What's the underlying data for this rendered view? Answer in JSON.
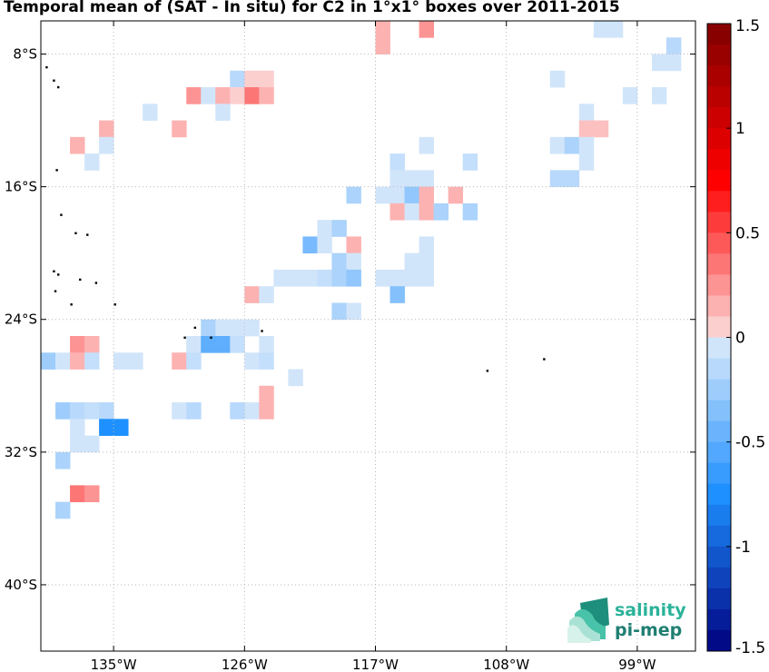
{
  "title": "Temporal mean of (SAT - In situ) for C2 in 1°x1° boxes over 2011-2015",
  "map": {
    "lon_range": [
      -140,
      -95
    ],
    "lat_range": [
      -44,
      -6
    ],
    "lon_ticks": [
      {
        "value": -135,
        "label": "135°W"
      },
      {
        "value": -126,
        "label": "126°W"
      },
      {
        "value": -117,
        "label": "117°W"
      },
      {
        "value": -108,
        "label": "108°W"
      },
      {
        "value": -99,
        "label": "99°W"
      }
    ],
    "lat_ticks": [
      {
        "value": -8,
        "label": "8°S"
      },
      {
        "value": -16,
        "label": "16°S"
      },
      {
        "value": -24,
        "label": "24°S"
      },
      {
        "value": -32,
        "label": "32°S"
      },
      {
        "value": -40,
        "label": "40°S"
      }
    ],
    "grid": true
  },
  "colorbar": {
    "range": [
      -1.5,
      1.5
    ],
    "levels": 30,
    "ticks": [
      {
        "value": 1.5,
        "label": "1.5"
      },
      {
        "value": 1,
        "label": "1"
      },
      {
        "value": 0.5,
        "label": "0.5"
      },
      {
        "value": 0,
        "label": "0"
      },
      {
        "value": -0.5,
        "label": "-0.5"
      },
      {
        "value": -1,
        "label": "-1"
      },
      {
        "value": -1.5,
        "label": "-1.5"
      }
    ]
  },
  "logo": {
    "line1": "salinity",
    "line2": "pi-mep"
  },
  "chart_data": {
    "type": "heatmap",
    "title": "Temporal mean of (SAT - In situ) for C2 in 1°x1° boxes over 2011-2015",
    "xlabel": "",
    "ylabel": "",
    "cell_size_deg": 1,
    "cells": [
      {
        "lon": -116.5,
        "lat": -6.5,
        "v": 0.15
      },
      {
        "lon": -113.5,
        "lat": -6.5,
        "v": 0.25
      },
      {
        "lon": -116.5,
        "lat": -7.5,
        "v": 0.15
      },
      {
        "lon": -101.5,
        "lat": -6.5,
        "v": -0.05
      },
      {
        "lon": -100.5,
        "lat": -6.5,
        "v": -0.05
      },
      {
        "lon": -96.5,
        "lat": -7.5,
        "v": -0.15
      },
      {
        "lon": -97.5,
        "lat": -8.5,
        "v": -0.05
      },
      {
        "lon": -96.5,
        "lat": -8.5,
        "v": -0.05
      },
      {
        "lon": -104.5,
        "lat": -9.5,
        "v": -0.05
      },
      {
        "lon": -126.5,
        "lat": -9.5,
        "v": -0.15
      },
      {
        "lon": -125.5,
        "lat": -9.5,
        "v": 0.05
      },
      {
        "lon": -124.5,
        "lat": -9.5,
        "v": 0.05
      },
      {
        "lon": -129.5,
        "lat": -10.5,
        "v": 0.25
      },
      {
        "lon": -128.5,
        "lat": -10.5,
        "v": -0.05
      },
      {
        "lon": -127.5,
        "lat": -10.5,
        "v": 0.15
      },
      {
        "lon": -126.5,
        "lat": -10.5,
        "v": 0.05
      },
      {
        "lon": -125.5,
        "lat": -10.5,
        "v": 0.35
      },
      {
        "lon": -124.5,
        "lat": -10.5,
        "v": 0.15
      },
      {
        "lon": -99.5,
        "lat": -10.5,
        "v": -0.05
      },
      {
        "lon": -97.5,
        "lat": -10.5,
        "v": -0.05
      },
      {
        "lon": -132.5,
        "lat": -11.5,
        "v": -0.05
      },
      {
        "lon": -127.5,
        "lat": -11.5,
        "v": -0.05
      },
      {
        "lon": -102.5,
        "lat": -11.5,
        "v": -0.05
      },
      {
        "lon": -135.5,
        "lat": -12.5,
        "v": 0.15
      },
      {
        "lon": -130.5,
        "lat": -12.5,
        "v": 0.15
      },
      {
        "lon": -102.5,
        "lat": -12.5,
        "v": 0.1
      },
      {
        "lon": -101.5,
        "lat": -12.5,
        "v": 0.1
      },
      {
        "lon": -135.5,
        "lat": -13.5,
        "v": -0.05
      },
      {
        "lon": -137.5,
        "lat": -13.5,
        "v": 0.15
      },
      {
        "lon": -113.5,
        "lat": -13.5,
        "v": -0.05
      },
      {
        "lon": -104.5,
        "lat": -13.5,
        "v": -0.05
      },
      {
        "lon": -103.5,
        "lat": -13.5,
        "v": -0.2
      },
      {
        "lon": -102.5,
        "lat": -13.5,
        "v": -0.05
      },
      {
        "lon": -136.5,
        "lat": -14.5,
        "v": -0.05
      },
      {
        "lon": -115.5,
        "lat": -14.5,
        "v": -0.1
      },
      {
        "lon": -110.5,
        "lat": -14.5,
        "v": -0.1
      },
      {
        "lon": -102.5,
        "lat": -14.5,
        "v": -0.05
      },
      {
        "lon": -115.5,
        "lat": -15.5,
        "v": -0.05
      },
      {
        "lon": -114.5,
        "lat": -15.5,
        "v": -0.05
      },
      {
        "lon": -113.5,
        "lat": -15.5,
        "v": -0.05
      },
      {
        "lon": -104.5,
        "lat": -15.5,
        "v": -0.15
      },
      {
        "lon": -103.5,
        "lat": -15.5,
        "v": -0.15
      },
      {
        "lon": -118.5,
        "lat": -16.5,
        "v": -0.2
      },
      {
        "lon": -116.5,
        "lat": -16.5,
        "v": -0.05
      },
      {
        "lon": -115.5,
        "lat": -16.5,
        "v": -0.05
      },
      {
        "lon": -114.5,
        "lat": -16.5,
        "v": -0.3
      },
      {
        "lon": -113.5,
        "lat": -16.5,
        "v": 0.15
      },
      {
        "lon": -111.5,
        "lat": -16.5,
        "v": 0.15
      },
      {
        "lon": -115.5,
        "lat": -17.5,
        "v": 0.15
      },
      {
        "lon": -114.5,
        "lat": -17.5,
        "v": -0.05
      },
      {
        "lon": -113.5,
        "lat": -17.5,
        "v": 0.15
      },
      {
        "lon": -112.5,
        "lat": -17.5,
        "v": -0.2
      },
      {
        "lon": -110.5,
        "lat": -17.5,
        "v": -0.2
      },
      {
        "lon": -120.5,
        "lat": -18.5,
        "v": -0.05
      },
      {
        "lon": -119.5,
        "lat": -18.5,
        "v": -0.2
      },
      {
        "lon": -121.5,
        "lat": -19.5,
        "v": -0.4
      },
      {
        "lon": -120.5,
        "lat": -19.5,
        "v": -0.05
      },
      {
        "lon": -118.5,
        "lat": -19.5,
        "v": 0.15
      },
      {
        "lon": -113.5,
        "lat": -19.5,
        "v": -0.05
      },
      {
        "lon": -119.5,
        "lat": -20.5,
        "v": -0.2
      },
      {
        "lon": -118.5,
        "lat": -20.5,
        "v": -0.05
      },
      {
        "lon": -114.5,
        "lat": -20.5,
        "v": -0.05
      },
      {
        "lon": -113.5,
        "lat": -20.5,
        "v": -0.05
      },
      {
        "lon": -123.5,
        "lat": -21.5,
        "v": -0.05
      },
      {
        "lon": -122.5,
        "lat": -21.5,
        "v": -0.05
      },
      {
        "lon": -121.5,
        "lat": -21.5,
        "v": -0.05
      },
      {
        "lon": -120.5,
        "lat": -21.5,
        "v": -0.1
      },
      {
        "lon": -119.5,
        "lat": -21.5,
        "v": -0.2
      },
      {
        "lon": -118.5,
        "lat": -21.5,
        "v": -0.3
      },
      {
        "lon": -116.5,
        "lat": -21.5,
        "v": -0.05
      },
      {
        "lon": -115.5,
        "lat": -21.5,
        "v": -0.05
      },
      {
        "lon": -114.5,
        "lat": -21.5,
        "v": -0.05
      },
      {
        "lon": -113.5,
        "lat": -21.5,
        "v": -0.05
      },
      {
        "lon": -125.5,
        "lat": -22.5,
        "v": 0.15
      },
      {
        "lon": -124.5,
        "lat": -22.5,
        "v": -0.05
      },
      {
        "lon": -115.5,
        "lat": -22.5,
        "v": -0.35
      },
      {
        "lon": -119.5,
        "lat": -23.5,
        "v": -0.2
      },
      {
        "lon": -118.5,
        "lat": -23.5,
        "v": -0.05
      },
      {
        "lon": -128.5,
        "lat": -24.5,
        "v": -0.2
      },
      {
        "lon": -127.5,
        "lat": -24.5,
        "v": -0.05
      },
      {
        "lon": -126.5,
        "lat": -24.5,
        "v": -0.05
      },
      {
        "lon": -125.5,
        "lat": -24.5,
        "v": -0.05
      },
      {
        "lon": -129.5,
        "lat": -25.5,
        "v": -0.05
      },
      {
        "lon": -128.5,
        "lat": -25.5,
        "v": -0.5
      },
      {
        "lon": -127.5,
        "lat": -25.5,
        "v": -0.5
      },
      {
        "lon": -126.5,
        "lat": -25.5,
        "v": -0.1
      },
      {
        "lon": -137.5,
        "lat": -25.5,
        "v": 0.25
      },
      {
        "lon": -136.5,
        "lat": -25.5,
        "v": 0.15
      },
      {
        "lon": -124.5,
        "lat": -25.5,
        "v": -0.05
      },
      {
        "lon": -139.5,
        "lat": -26.5,
        "v": -0.25
      },
      {
        "lon": -138.5,
        "lat": -26.5,
        "v": -0.05
      },
      {
        "lon": -137.5,
        "lat": -26.5,
        "v": 0.15
      },
      {
        "lon": -136.5,
        "lat": -26.5,
        "v": -0.1
      },
      {
        "lon": -134.5,
        "lat": -26.5,
        "v": -0.05
      },
      {
        "lon": -133.5,
        "lat": -26.5,
        "v": -0.05
      },
      {
        "lon": -130.5,
        "lat": -26.5,
        "v": 0.15
      },
      {
        "lon": -129.5,
        "lat": -26.5,
        "v": -0.1
      },
      {
        "lon": -125.5,
        "lat": -26.5,
        "v": -0.05
      },
      {
        "lon": -124.5,
        "lat": -26.5,
        "v": -0.1
      },
      {
        "lon": -122.5,
        "lat": -27.5,
        "v": -0.05
      },
      {
        "lon": -124.5,
        "lat": -28.5,
        "v": 0.15
      },
      {
        "lon": -138.5,
        "lat": -29.5,
        "v": -0.25
      },
      {
        "lon": -137.5,
        "lat": -29.5,
        "v": -0.15
      },
      {
        "lon": -136.5,
        "lat": -29.5,
        "v": -0.1
      },
      {
        "lon": -135.5,
        "lat": -29.5,
        "v": -0.15
      },
      {
        "lon": -130.5,
        "lat": -29.5,
        "v": -0.05
      },
      {
        "lon": -129.5,
        "lat": -29.5,
        "v": -0.15
      },
      {
        "lon": -126.5,
        "lat": -29.5,
        "v": -0.15
      },
      {
        "lon": -125.5,
        "lat": -29.5,
        "v": -0.05
      },
      {
        "lon": -124.5,
        "lat": -29.5,
        "v": 0.15
      },
      {
        "lon": -137.5,
        "lat": -30.5,
        "v": -0.05
      },
      {
        "lon": -135.5,
        "lat": -30.5,
        "v": -0.75
      },
      {
        "lon": -134.5,
        "lat": -30.5,
        "v": -0.75
      },
      {
        "lon": -137.5,
        "lat": -31.5,
        "v": -0.05
      },
      {
        "lon": -136.5,
        "lat": -31.5,
        "v": -0.05
      },
      {
        "lon": -138.5,
        "lat": -32.5,
        "v": -0.2
      },
      {
        "lon": -137.5,
        "lat": -34.5,
        "v": 0.35
      },
      {
        "lon": -136.5,
        "lat": -34.5,
        "v": 0.25
      },
      {
        "lon": -138.5,
        "lat": -35.5,
        "v": -0.2
      }
    ],
    "islands": [
      {
        "lon": -139.6,
        "lat": -8.8
      },
      {
        "lon": -139.1,
        "lat": -9.6
      },
      {
        "lon": -138.8,
        "lat": -10.0
      },
      {
        "lon": -138.9,
        "lat": -15.0
      },
      {
        "lon": -138.6,
        "lat": -17.7
      },
      {
        "lon": -137.6,
        "lat": -18.8
      },
      {
        "lon": -136.8,
        "lat": -18.9
      },
      {
        "lon": -139.1,
        "lat": -21.1
      },
      {
        "lon": -138.8,
        "lat": -21.3
      },
      {
        "lon": -137.3,
        "lat": -21.6
      },
      {
        "lon": -136.2,
        "lat": -21.8
      },
      {
        "lon": -139.0,
        "lat": -22.3
      },
      {
        "lon": -134.9,
        "lat": -23.1
      },
      {
        "lon": -137.9,
        "lat": -23.1
      },
      {
        "lon": -130.1,
        "lat": -25.1
      },
      {
        "lon": -128.3,
        "lat": -25.1
      },
      {
        "lon": -124.8,
        "lat": -24.7
      },
      {
        "lon": -129.4,
        "lat": -24.5
      },
      {
        "lon": -109.3,
        "lat": -27.1
      },
      {
        "lon": -105.4,
        "lat": -26.4
      }
    ]
  }
}
